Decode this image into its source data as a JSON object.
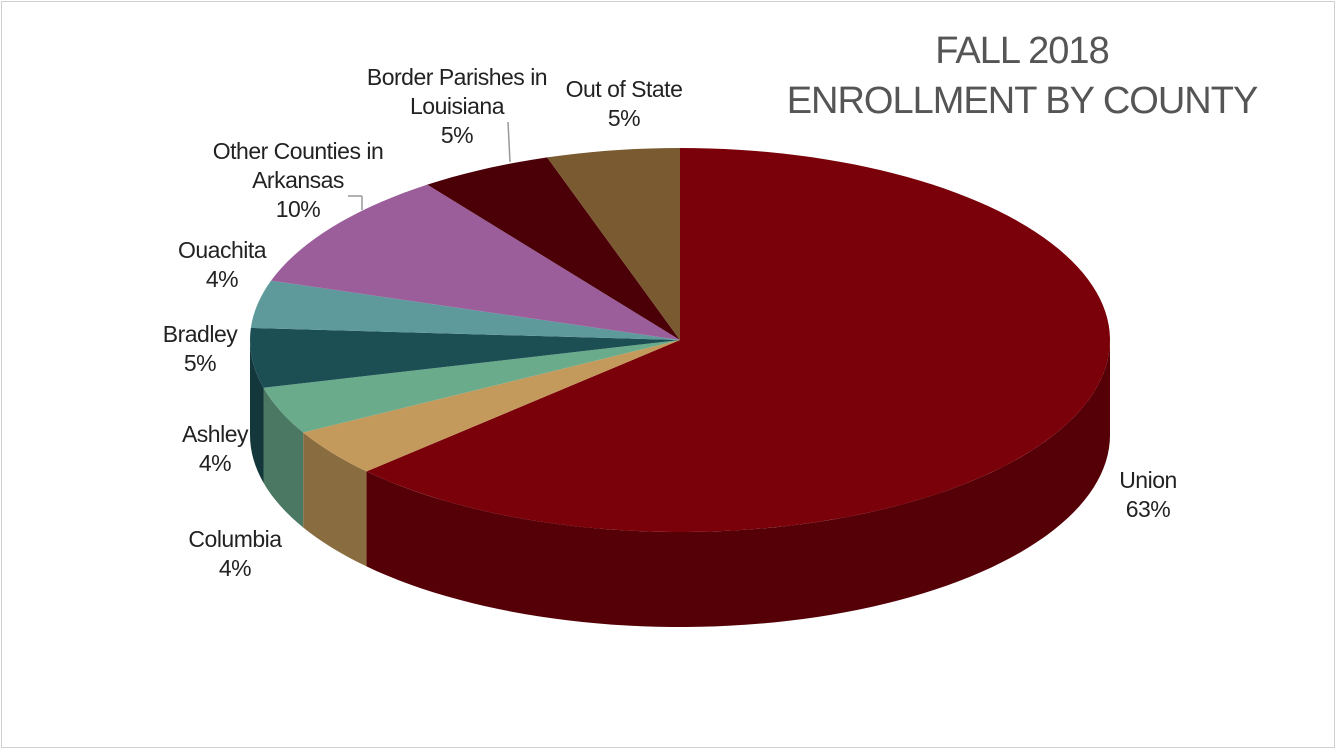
{
  "chart_data": {
    "type": "pie",
    "title": [
      "FALL 2018",
      "ENROLLMENT BY COUNTY"
    ],
    "categories": [
      "Union",
      "Columbia",
      "Ashley",
      "Bradley",
      "Ouachita",
      "Other Counties in Arkansas",
      "Border Parishes in Louisiana",
      "Out of State"
    ],
    "values": [
      63,
      4,
      4,
      5,
      4,
      10,
      5,
      5
    ],
    "value_labels": [
      "63%",
      "4%",
      "4%",
      "5%",
      "4%",
      "10%",
      "5%",
      "5%"
    ],
    "colors": [
      "#7a0009",
      "#c49a5c",
      "#6aab8c",
      "#1c4f54",
      "#5e9a9c",
      "#9b5e9b",
      "#4a0006",
      "#7a5a30"
    ]
  }
}
